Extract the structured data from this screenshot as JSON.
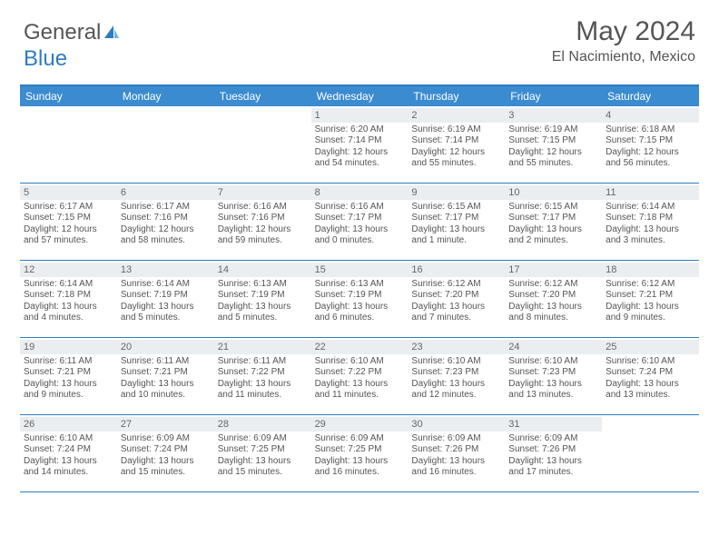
{
  "logo": {
    "general": "General",
    "blue": "Blue"
  },
  "title": "May 2024",
  "location": "El Nacimiento, Mexico",
  "colors": {
    "header_bar": "#3b8bd0",
    "accent_line": "#2e7cc2",
    "daynum_bg": "#ebeef1",
    "text": "#555555"
  },
  "day_headers": [
    "Sunday",
    "Monday",
    "Tuesday",
    "Wednesday",
    "Thursday",
    "Friday",
    "Saturday"
  ],
  "weeks": [
    [
      null,
      null,
      null,
      {
        "n": "1",
        "sr": "Sunrise: 6:20 AM",
        "ss": "Sunset: 7:14 PM",
        "d1": "Daylight: 12 hours",
        "d2": "and 54 minutes."
      },
      {
        "n": "2",
        "sr": "Sunrise: 6:19 AM",
        "ss": "Sunset: 7:14 PM",
        "d1": "Daylight: 12 hours",
        "d2": "and 55 minutes."
      },
      {
        "n": "3",
        "sr": "Sunrise: 6:19 AM",
        "ss": "Sunset: 7:15 PM",
        "d1": "Daylight: 12 hours",
        "d2": "and 55 minutes."
      },
      {
        "n": "4",
        "sr": "Sunrise: 6:18 AM",
        "ss": "Sunset: 7:15 PM",
        "d1": "Daylight: 12 hours",
        "d2": "and 56 minutes."
      }
    ],
    [
      {
        "n": "5",
        "sr": "Sunrise: 6:17 AM",
        "ss": "Sunset: 7:15 PM",
        "d1": "Daylight: 12 hours",
        "d2": "and 57 minutes."
      },
      {
        "n": "6",
        "sr": "Sunrise: 6:17 AM",
        "ss": "Sunset: 7:16 PM",
        "d1": "Daylight: 12 hours",
        "d2": "and 58 minutes."
      },
      {
        "n": "7",
        "sr": "Sunrise: 6:16 AM",
        "ss": "Sunset: 7:16 PM",
        "d1": "Daylight: 12 hours",
        "d2": "and 59 minutes."
      },
      {
        "n": "8",
        "sr": "Sunrise: 6:16 AM",
        "ss": "Sunset: 7:17 PM",
        "d1": "Daylight: 13 hours",
        "d2": "and 0 minutes."
      },
      {
        "n": "9",
        "sr": "Sunrise: 6:15 AM",
        "ss": "Sunset: 7:17 PM",
        "d1": "Daylight: 13 hours",
        "d2": "and 1 minute."
      },
      {
        "n": "10",
        "sr": "Sunrise: 6:15 AM",
        "ss": "Sunset: 7:17 PM",
        "d1": "Daylight: 13 hours",
        "d2": "and 2 minutes."
      },
      {
        "n": "11",
        "sr": "Sunrise: 6:14 AM",
        "ss": "Sunset: 7:18 PM",
        "d1": "Daylight: 13 hours",
        "d2": "and 3 minutes."
      }
    ],
    [
      {
        "n": "12",
        "sr": "Sunrise: 6:14 AM",
        "ss": "Sunset: 7:18 PM",
        "d1": "Daylight: 13 hours",
        "d2": "and 4 minutes."
      },
      {
        "n": "13",
        "sr": "Sunrise: 6:14 AM",
        "ss": "Sunset: 7:19 PM",
        "d1": "Daylight: 13 hours",
        "d2": "and 5 minutes."
      },
      {
        "n": "14",
        "sr": "Sunrise: 6:13 AM",
        "ss": "Sunset: 7:19 PM",
        "d1": "Daylight: 13 hours",
        "d2": "and 5 minutes."
      },
      {
        "n": "15",
        "sr": "Sunrise: 6:13 AM",
        "ss": "Sunset: 7:19 PM",
        "d1": "Daylight: 13 hours",
        "d2": "and 6 minutes."
      },
      {
        "n": "16",
        "sr": "Sunrise: 6:12 AM",
        "ss": "Sunset: 7:20 PM",
        "d1": "Daylight: 13 hours",
        "d2": "and 7 minutes."
      },
      {
        "n": "17",
        "sr": "Sunrise: 6:12 AM",
        "ss": "Sunset: 7:20 PM",
        "d1": "Daylight: 13 hours",
        "d2": "and 8 minutes."
      },
      {
        "n": "18",
        "sr": "Sunrise: 6:12 AM",
        "ss": "Sunset: 7:21 PM",
        "d1": "Daylight: 13 hours",
        "d2": "and 9 minutes."
      }
    ],
    [
      {
        "n": "19",
        "sr": "Sunrise: 6:11 AM",
        "ss": "Sunset: 7:21 PM",
        "d1": "Daylight: 13 hours",
        "d2": "and 9 minutes."
      },
      {
        "n": "20",
        "sr": "Sunrise: 6:11 AM",
        "ss": "Sunset: 7:21 PM",
        "d1": "Daylight: 13 hours",
        "d2": "and 10 minutes."
      },
      {
        "n": "21",
        "sr": "Sunrise: 6:11 AM",
        "ss": "Sunset: 7:22 PM",
        "d1": "Daylight: 13 hours",
        "d2": "and 11 minutes."
      },
      {
        "n": "22",
        "sr": "Sunrise: 6:10 AM",
        "ss": "Sunset: 7:22 PM",
        "d1": "Daylight: 13 hours",
        "d2": "and 11 minutes."
      },
      {
        "n": "23",
        "sr": "Sunrise: 6:10 AM",
        "ss": "Sunset: 7:23 PM",
        "d1": "Daylight: 13 hours",
        "d2": "and 12 minutes."
      },
      {
        "n": "24",
        "sr": "Sunrise: 6:10 AM",
        "ss": "Sunset: 7:23 PM",
        "d1": "Daylight: 13 hours",
        "d2": "and 13 minutes."
      },
      {
        "n": "25",
        "sr": "Sunrise: 6:10 AM",
        "ss": "Sunset: 7:24 PM",
        "d1": "Daylight: 13 hours",
        "d2": "and 13 minutes."
      }
    ],
    [
      {
        "n": "26",
        "sr": "Sunrise: 6:10 AM",
        "ss": "Sunset: 7:24 PM",
        "d1": "Daylight: 13 hours",
        "d2": "and 14 minutes."
      },
      {
        "n": "27",
        "sr": "Sunrise: 6:09 AM",
        "ss": "Sunset: 7:24 PM",
        "d1": "Daylight: 13 hours",
        "d2": "and 15 minutes."
      },
      {
        "n": "28",
        "sr": "Sunrise: 6:09 AM",
        "ss": "Sunset: 7:25 PM",
        "d1": "Daylight: 13 hours",
        "d2": "and 15 minutes."
      },
      {
        "n": "29",
        "sr": "Sunrise: 6:09 AM",
        "ss": "Sunset: 7:25 PM",
        "d1": "Daylight: 13 hours",
        "d2": "and 16 minutes."
      },
      {
        "n": "30",
        "sr": "Sunrise: 6:09 AM",
        "ss": "Sunset: 7:26 PM",
        "d1": "Daylight: 13 hours",
        "d2": "and 16 minutes."
      },
      {
        "n": "31",
        "sr": "Sunrise: 6:09 AM",
        "ss": "Sunset: 7:26 PM",
        "d1": "Daylight: 13 hours",
        "d2": "and 17 minutes."
      },
      null
    ]
  ]
}
